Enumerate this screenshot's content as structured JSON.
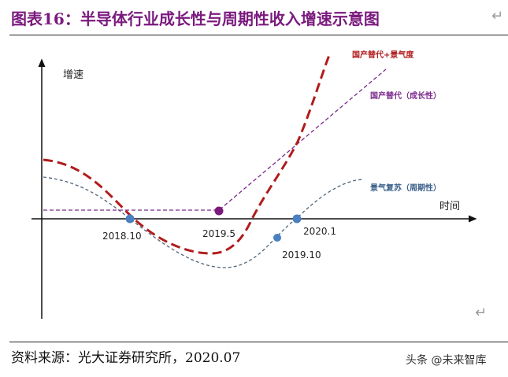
{
  "title": "图表16：半导体行业成长性与周期性收入增速示意图",
  "diagram": {
    "y_axis_label": "增速",
    "x_axis_label": "时间",
    "series": [
      {
        "name": "国产替代+景气度",
        "color": "#b01c1c"
      },
      {
        "name": "国产替代（成长性）",
        "color": "#7b2a8c"
      },
      {
        "name": "景气复苏（周期性）",
        "color": "#3a5f8a"
      }
    ],
    "points": [
      {
        "label": "2018.10",
        "color": "#4a7fc1"
      },
      {
        "label": "2019.5",
        "color": "#7b1a7b"
      },
      {
        "label": "2019.10",
        "color": "#4a7fc1"
      },
      {
        "label": "2020.1",
        "color": "#4a7fc1"
      }
    ]
  },
  "source": "资料来源：光大证券研究所，2020.07",
  "watermark": "头条 @未来智库"
}
